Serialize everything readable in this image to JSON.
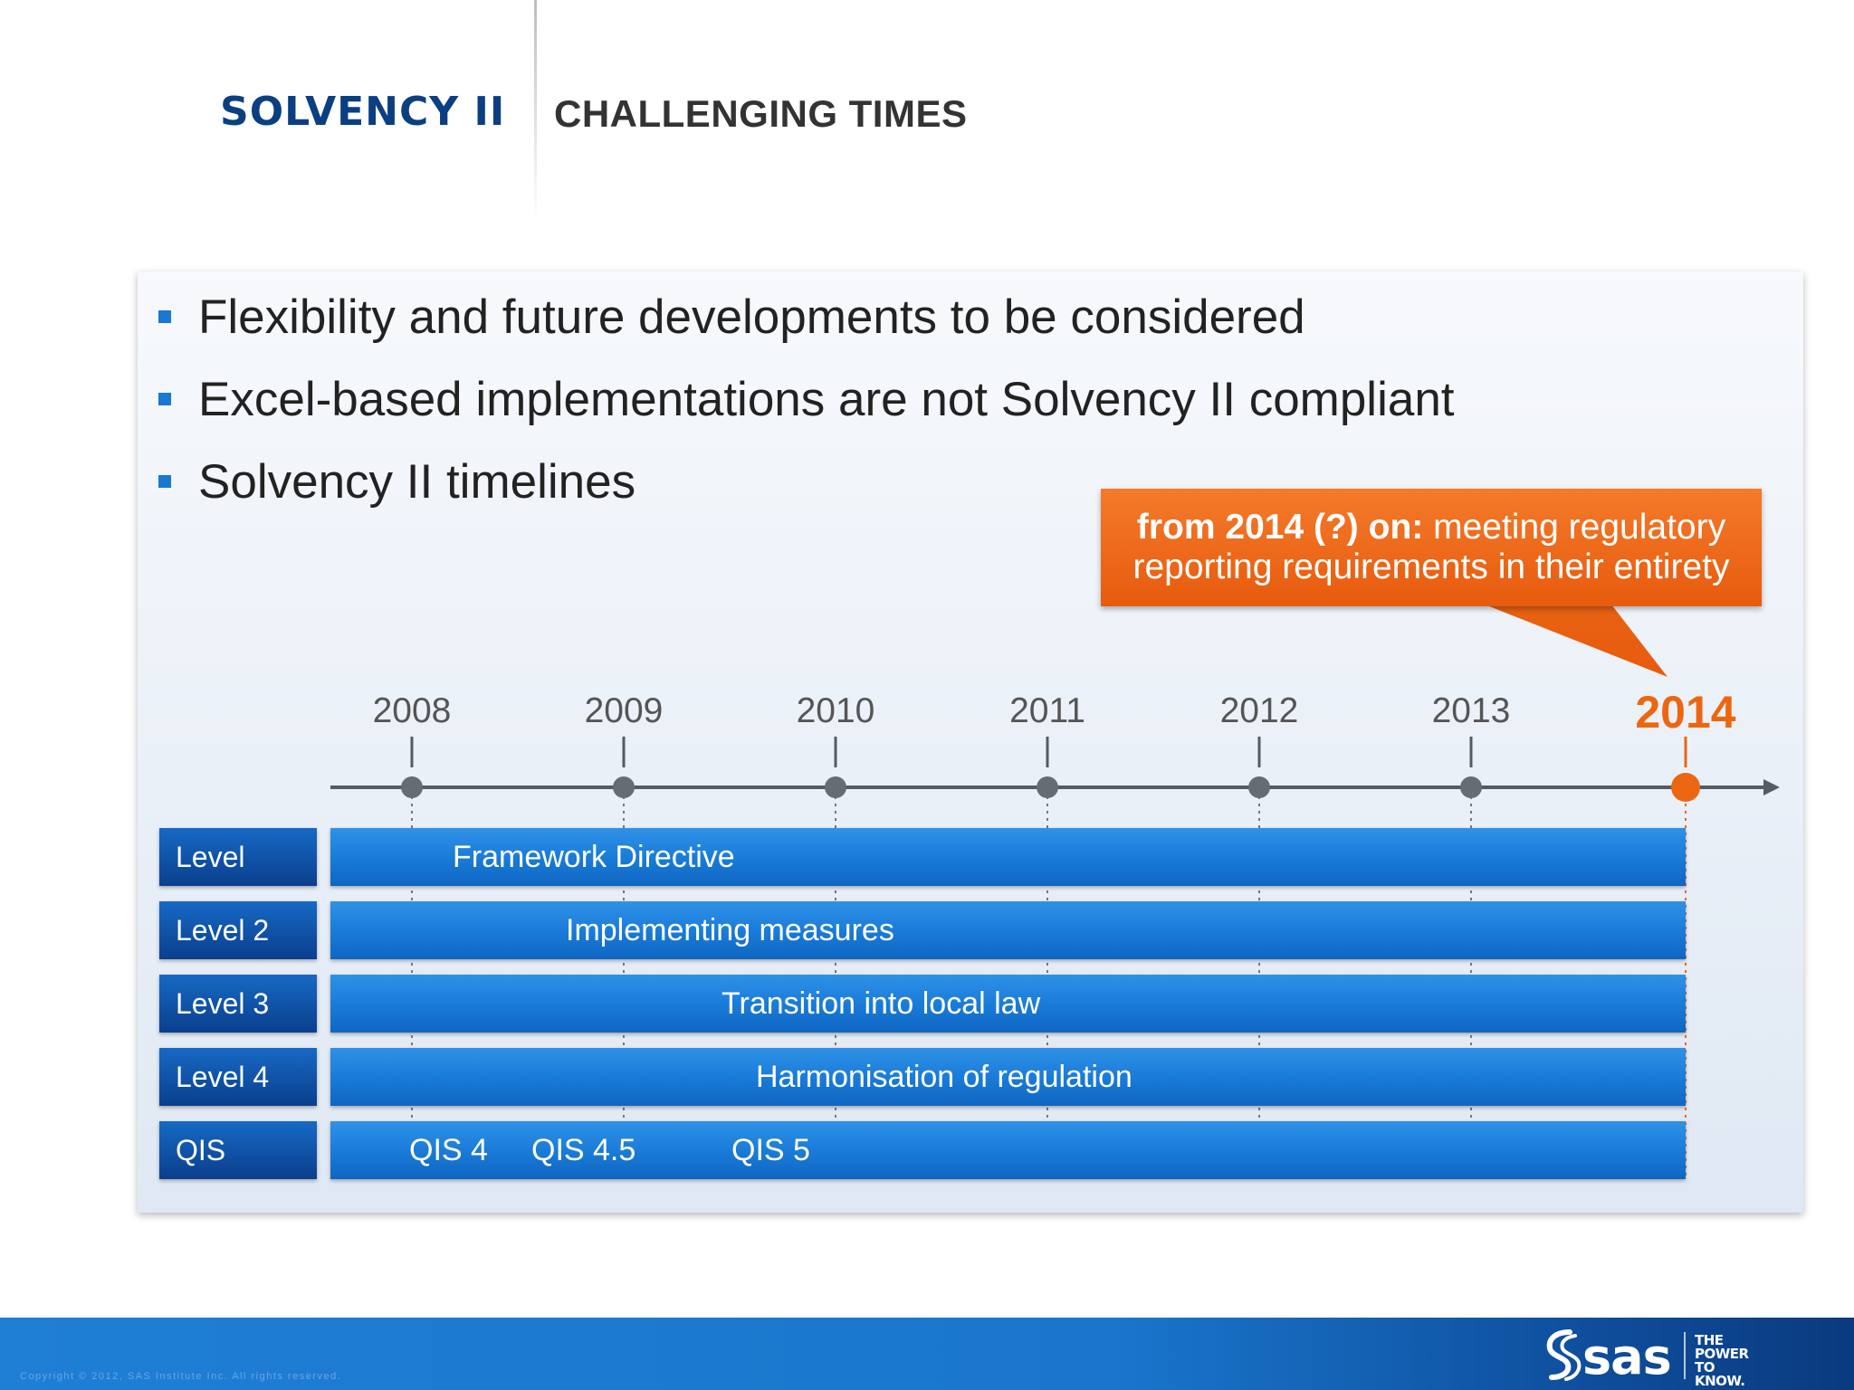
{
  "header": {
    "title": "SOLVENCY II",
    "subtitle": "CHALLENGING TIMES"
  },
  "bullets": [
    "Flexibility and future developments to be considered",
    "Excel-based implementations are not Solvency II compliant",
    "Solvency II timelines"
  ],
  "callout": {
    "bold": "from 2014 (?) on:",
    "text_line1_rest": " meeting regulatory",
    "text_line2": "reporting requirements in their entirety"
  },
  "timeline": {
    "years": [
      "2008",
      "2009",
      "2010",
      "2011",
      "2012",
      "2013"
    ],
    "final_year": "2014"
  },
  "rows": [
    {
      "label": "Level",
      "bar_text": "Framework Directive"
    },
    {
      "label": "Level 2",
      "bar_text": "Implementing measures"
    },
    {
      "label": "Level 3",
      "bar_text": "Transition into local law"
    },
    {
      "label": "Level 4",
      "bar_text": "Harmonisation of regulation"
    },
    {
      "label": "QIS",
      "qis": [
        "QIS 4",
        "QIS 4.5",
        "QIS 5"
      ]
    }
  ],
  "footer": {
    "copyright": "Copyright © 2012, SAS Institute Inc. All rights reserved.",
    "logo_text": "sas",
    "tagline": [
      "THE",
      "POWER",
      "TO KNOW."
    ]
  },
  "colors": {
    "brand_blue": "#0b3f82",
    "bar_blue": "#1a7cd9",
    "accent_orange": "#ec6611"
  }
}
